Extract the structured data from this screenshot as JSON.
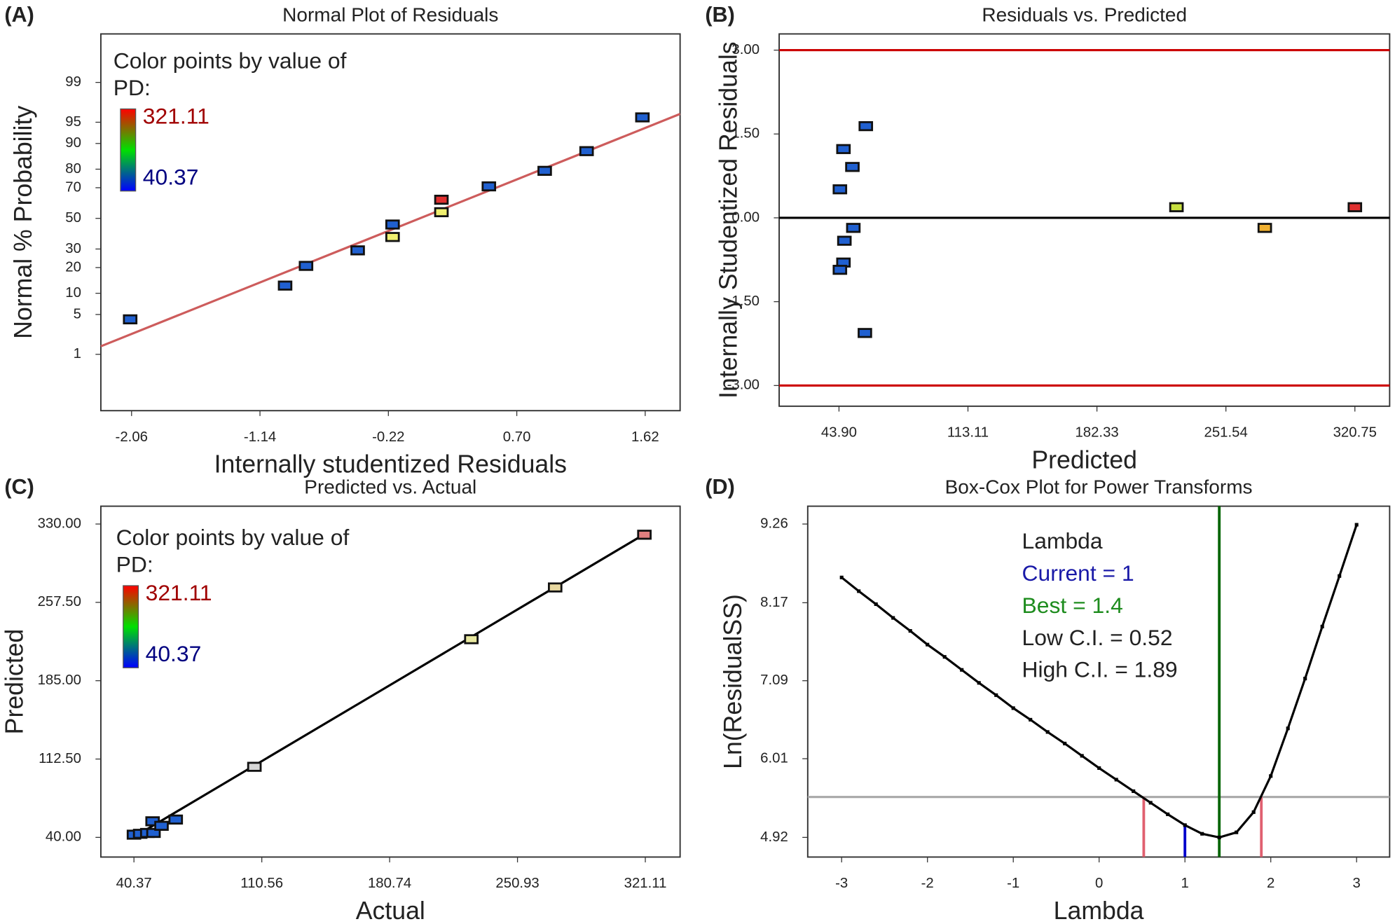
{
  "chart_data": [
    {
      "type": "scatter",
      "panel": "(A)",
      "title": "Normal Plot of Residuals",
      "x_label": "Internally studentized Residuals",
      "y_label": "Normal % Probability",
      "yscale": "probability",
      "x": [
        -2.07,
        -0.96,
        -0.81,
        -0.44,
        -0.19,
        -0.19,
        0.16,
        0.16,
        0.5,
        0.9,
        1.2,
        1.6
      ],
      "values": [
        4.2,
        12.5,
        20.8,
        29.2,
        37.5,
        45.8,
        54.2,
        62.5,
        70.8,
        79.2,
        87.5,
        95.8
      ],
      "point_colors": [
        "#2060d0",
        "#2060d0",
        "#2060d0",
        "#2060d0",
        "#f0f070",
        "#2060d0",
        "#f0f070",
        "#e03030",
        "#2060d0",
        "#2060d0",
        "#2060d0",
        "#2060d0"
      ],
      "fit_line": {
        "x": [
          -2.28,
          1.87
        ],
        "y": [
          1.43,
          96.3
        ],
        "color": "#cd5c5c"
      },
      "xlim": [
        -2.28,
        1.87
      ],
      "xticks": [
        -2.06,
        -1.14,
        -0.22,
        {
          "value": 0.7,
          "label": "0.70"
        },
        1.62
      ],
      "ylim": [
        0.05,
        99.92
      ],
      "yticks": [
        1,
        5,
        10,
        20,
        30,
        50,
        70,
        80,
        90,
        95,
        99
      ],
      "legend_title": [
        "Color points by value of",
        "PD:"
      ],
      "color_scale": {
        "max": 321.11,
        "min": 40.37,
        "colors": [
          "#ff0000",
          "#00e000",
          "#0000ff"
        ],
        "max_color": "#a00000",
        "min_color": "#000080"
      }
    },
    {
      "type": "scatter",
      "panel": "(B)",
      "title": "Residuals vs. Predicted",
      "x_label": "Predicted",
      "y_label": "Internally Studentized Residuals",
      "x": [
        44.4,
        46.3,
        51.1,
        58.3,
        51.6,
        46.8,
        46.3,
        44.4,
        57.8,
        225,
        272.4,
        320.75
      ],
      "values": [
        0.51,
        1.23,
        0.91,
        1.64,
        -0.18,
        -0.41,
        -0.8,
        -0.93,
        -2.06,
        0.19,
        -0.18,
        0.19
      ],
      "point_colors": [
        "#2060d0",
        "#2060d0",
        "#2060d0",
        "#2060d0",
        "#2060d0",
        "#2060d0",
        "#2060d0",
        "#2060d0",
        "#2060d0",
        "#c8e040",
        "#f0b030",
        "#e03030"
      ],
      "ref_lines": [
        {
          "value": 3,
          "color": "#cc0000"
        },
        {
          "value": 0,
          "color": "#000000"
        },
        {
          "value": -3,
          "color": "#cc0000"
        }
      ],
      "xlim": [
        11.8,
        339.4
      ],
      "xticks": [
        {
          "value": 43.9,
          "label": "43.90"
        },
        113.11,
        182.33,
        251.54,
        320.75
      ],
      "ylim": [
        -3.37,
        3.29
      ],
      "yticks": [
        {
          "value": -3,
          "label": "-3.00"
        },
        {
          "value": -1.5,
          "label": "-1.50"
        },
        {
          "value": 0,
          "label": "0.00"
        },
        {
          "value": 1.5,
          "label": "1.50"
        },
        {
          "value": 3,
          "label": "3.00"
        }
      ]
    },
    {
      "type": "scatter",
      "panel": "(C)",
      "title": "Predicted vs. Actual",
      "x_label": "Actual",
      "y_label": "Predicted",
      "x": [
        40.37,
        43.8,
        47.7,
        50.6,
        51.1,
        55.5,
        63.3,
        106.5,
        225.6,
        271.6,
        320.6
      ],
      "values": [
        42.5,
        43.3,
        44.1,
        54.9,
        44.1,
        50.7,
        56.5,
        105.3,
        223.4,
        271.3,
        320.1
      ],
      "point_colors": [
        "#2060d0",
        "#2060d0",
        "#2060d0",
        "#2060d0",
        "#2060d0",
        "#2060d0",
        "#2060d0",
        "#d8d8d8",
        "#e8e8a0",
        "#e8d8a0",
        "#e08080"
      ],
      "fit_line": {
        "x": [
          40.37,
          321.11
        ],
        "y": [
          40.37,
          321.11
        ],
        "color": "#000000"
      },
      "xlim": [
        22.2,
        340.2
      ],
      "xticks": [
        40.37,
        110.56,
        180.74,
        250.93,
        321.11
      ],
      "ylim": [
        21.8,
        346.5
      ],
      "yticks": [
        {
          "value": 40,
          "label": "40.00"
        },
        {
          "value": 112.5,
          "label": "112.50"
        },
        {
          "value": 185,
          "label": "185.00"
        },
        {
          "value": 257.5,
          "label": "257.50"
        },
        {
          "value": 330,
          "label": "330.00"
        }
      ],
      "legend_title": [
        "Color points by value of",
        "PD:"
      ],
      "color_scale": {
        "max": 321.11,
        "min": 40.37,
        "colors": [
          "#ff0000",
          "#00e000",
          "#0000ff"
        ],
        "max_color": "#a00000",
        "min_color": "#000080"
      }
    },
    {
      "type": "line",
      "panel": "(D)",
      "title": "Box-Cox Plot for Power Transforms",
      "x_label": "Lambda",
      "y_label": "Ln(ResidualSS)",
      "color": "#000000",
      "x": [
        -3,
        -2.8,
        -2.6,
        -2.4,
        -2.2,
        -2,
        -1.8,
        -1.6,
        -1.4,
        -1.2,
        -1,
        -0.8,
        -0.6,
        -0.4,
        -0.2,
        0,
        0.2,
        0.4,
        0.6,
        0.8,
        1,
        1.2,
        1.4,
        1.6,
        1.8,
        2,
        2.2,
        2.4,
        2.6,
        2.8,
        3
      ],
      "values": [
        8.52,
        8.33,
        8.15,
        7.96,
        7.78,
        7.59,
        7.42,
        7.24,
        7.06,
        6.89,
        6.71,
        6.55,
        6.38,
        6.22,
        6.05,
        5.88,
        5.72,
        5.56,
        5.4,
        5.24,
        5.09,
        4.97,
        4.92,
        4.99,
        5.27,
        5.77,
        6.43,
        7.12,
        7.84,
        8.54,
        9.25
      ],
      "threshold": {
        "value": 5.48,
        "color": "#a8a8a8"
      },
      "legend_title": "Lambda",
      "lines": [
        {
          "value": 1,
          "label": "Current = 1",
          "color": "#0000cc",
          "label_color": "#1a1aa8",
          "span": "curve"
        },
        {
          "value": 1.4,
          "label": "Best = 1.4",
          "color": "#006400",
          "label_color": "#1e8c1e",
          "span": "full"
        },
        {
          "value": 0.52,
          "label": "Low C.I. = 0.52",
          "color": "#e06070",
          "label_color": "#222222",
          "span": "threshold"
        },
        {
          "value": 1.89,
          "label": "High C.I. = 1.89",
          "color": "#e06070",
          "label_color": "#222222",
          "span": "threshold"
        }
      ],
      "xlim": [
        -3.395,
        3.385
      ],
      "xticks": [
        -3,
        -2,
        -1,
        0,
        1,
        2,
        3
      ],
      "ylim": [
        4.648,
        9.507
      ],
      "yticks": [
        4.92,
        6.01,
        7.09,
        8.17,
        9.26
      ]
    }
  ]
}
